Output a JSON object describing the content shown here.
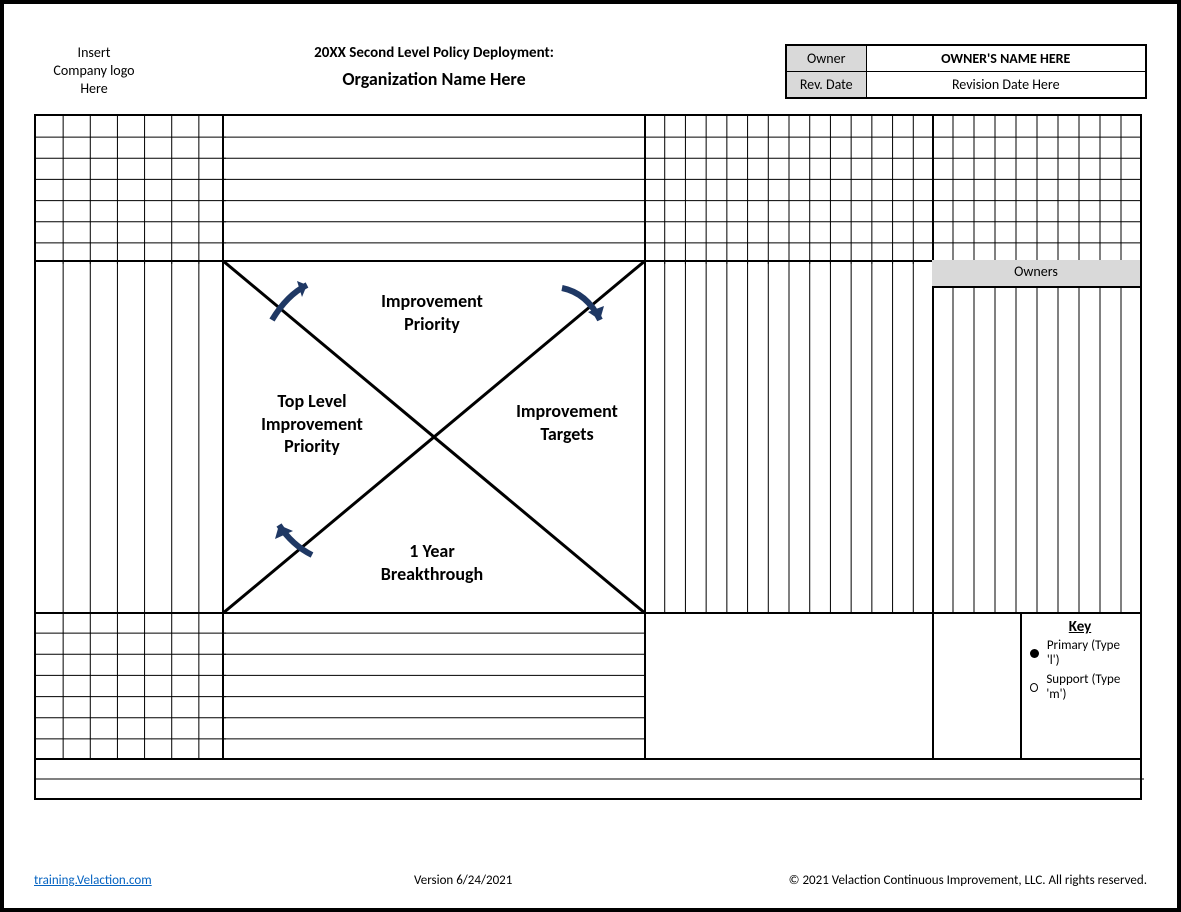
{
  "header": {
    "logo_placeholder": "Insert\nCompany logo\nHere",
    "title_line1": "20XX Second Level Policy Deployment:",
    "title_line2": "Organization Name Here",
    "owner_label": "Owner",
    "owner_value": "OWNER'S NAME HERE",
    "revdate_label": "Rev. Date",
    "revdate_value": "Revision Date Here"
  },
  "matrix": {
    "layout": {
      "top_band_rows": 7,
      "bottom_band_rows": 7,
      "left_cols": 7,
      "right_block1_cols": 14,
      "right_block2_cols": 10,
      "gap_strip_rows": 2,
      "owners_header": "Owners"
    },
    "xmatrix": {
      "top_label": "Improvement\nPriority",
      "left_label": "Top Level\nImprovement\nPriority",
      "right_label": "Improvement\nTargets",
      "bottom_label": "1 Year\nBreakthrough",
      "arrow_color": "#1f3864"
    }
  },
  "key": {
    "title": "Key",
    "primary_label": "Primary (Type 'l')",
    "support_label": "Support (Type 'm')"
  },
  "footer": {
    "link_text": "training.Velaction.com",
    "version": "Version 6/24/2021",
    "copyright": "© 2021 Velaction Continuous Improvement, LLC. All rights reserved."
  },
  "colors": {
    "border": "#000000",
    "header_fill": "#d9d9d9",
    "link": "#0563c1",
    "arrow": "#1f3864",
    "background": "#ffffff"
  }
}
